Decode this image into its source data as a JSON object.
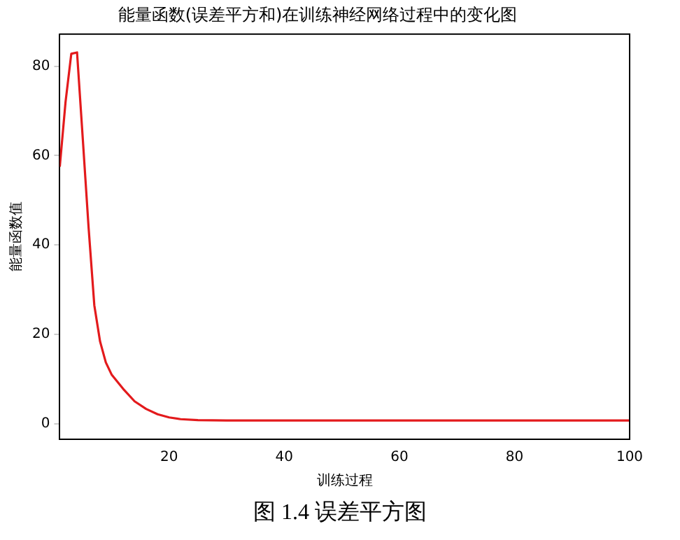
{
  "chart_data": {
    "type": "line",
    "title": "能量函数(误差平方和)在训练神经网络过程中的变化图",
    "xlabel": "训练过程",
    "ylabel": "能量函数值",
    "annotations": [
      "图 1.4 误差平方图"
    ],
    "x": [
      1,
      2,
      3,
      4,
      5,
      6,
      7,
      8,
      9,
      10,
      12,
      14,
      16,
      18,
      20,
      22,
      25,
      30,
      40,
      60,
      80,
      100
    ],
    "series": [
      {
        "color": "#e31a1c",
        "values": [
          57.5,
          72,
          82.8,
          83.1,
          63.7,
          44,
          26.5,
          18.4,
          13.7,
          11,
          7.8,
          5,
          3.3,
          2.1,
          1.4,
          1,
          0.8,
          0.7,
          0.7,
          0.7,
          0.7,
          0.7
        ]
      }
    ],
    "xlim": [
      1,
      100
    ],
    "xticks": [
      20,
      40,
      60,
      80,
      100
    ],
    "ylim": [
      -3.5,
      87.2
    ],
    "yticks": [
      0,
      20,
      40,
      60,
      80
    ],
    "grid": false,
    "legend": false,
    "marker": "none",
    "line_style": "solid"
  }
}
